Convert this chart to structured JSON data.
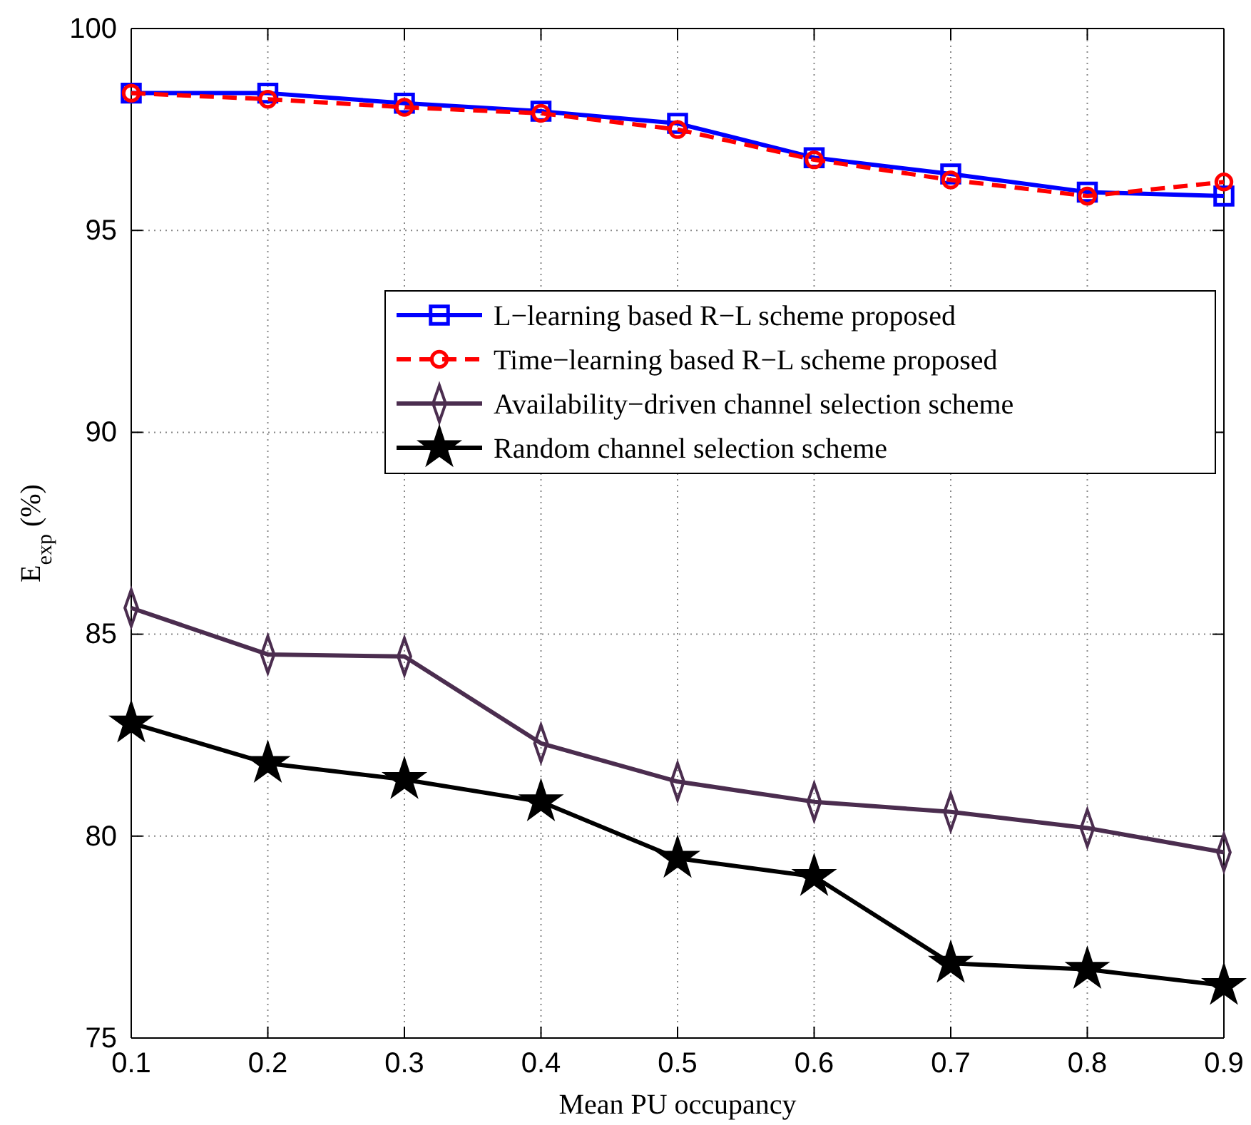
{
  "chart_data": {
    "type": "line",
    "xlabel": "Mean PU occupancy",
    "ylabel": "E$_{exp}$ (%)",
    "x": [
      0.1,
      0.2,
      0.3,
      0.4,
      0.5,
      0.6,
      0.7,
      0.8,
      0.9
    ],
    "xlim": [
      0.1,
      0.9
    ],
    "xticks": [
      0.1,
      0.2,
      0.3,
      0.4,
      0.5,
      0.6,
      0.7,
      0.8,
      0.9
    ],
    "ylim": [
      75,
      100
    ],
    "yticks": [
      75,
      80,
      85,
      90,
      95,
      100
    ],
    "grid": true,
    "legend": "right",
    "series": [
      {
        "name": "L−learning based R−L scheme proposed",
        "color": "#0000ff",
        "marker": "square",
        "line_style": "solid",
        "values": [
          98.4,
          98.4,
          98.15,
          97.95,
          97.65,
          96.8,
          96.4,
          95.95,
          95.85
        ]
      },
      {
        "name": "Time−learning based R−L scheme proposed",
        "color": "#ff0000",
        "marker": "circle",
        "line_style": "dashed",
        "values": [
          98.4,
          98.25,
          98.05,
          97.9,
          97.5,
          96.75,
          96.25,
          95.85,
          96.2
        ]
      },
      {
        "name": "Availability−driven channel selection scheme",
        "color": "#4b2d4f",
        "marker": "diamond",
        "line_style": "solid",
        "values": [
          85.65,
          84.5,
          84.45,
          82.3,
          81.35,
          80.85,
          80.6,
          80.2,
          79.6
        ]
      },
      {
        "name": "Random channel selection scheme",
        "color": "#000000",
        "marker": "star",
        "line_style": "solid",
        "values": [
          82.8,
          81.8,
          81.4,
          80.85,
          79.45,
          79.0,
          76.85,
          76.7,
          76.3
        ]
      }
    ]
  }
}
